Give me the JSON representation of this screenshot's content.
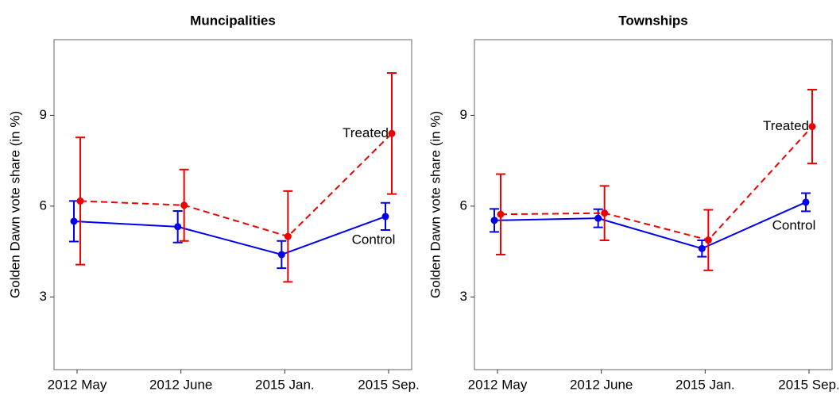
{
  "chart_data": [
    {
      "type": "line",
      "title": "Muncipalities",
      "y_label": "Golden Dawn vote share (in %)",
      "categories": [
        "2012 May",
        "2012 June",
        "2015 Jan.",
        "2015 Sep."
      ],
      "ylim": [
        0.6,
        11.5
      ],
      "yticks": [
        3,
        6,
        9
      ],
      "series": [
        {
          "name": "Control",
          "color": "#0000ee",
          "linestyle": "solid",
          "values": [
            5.5,
            5.32,
            4.4,
            5.66
          ],
          "errors": [
            0.67,
            0.52,
            0.45,
            0.45
          ]
        },
        {
          "name": "Treated",
          "color": "#ee0000",
          "linestyle": "dashed",
          "values": [
            6.17,
            6.03,
            5.0,
            8.4
          ],
          "errors": [
            2.1,
            1.18,
            1.5,
            2.0
          ]
        }
      ]
    },
    {
      "type": "line",
      "title": "Townships",
      "y_label": "Golden Dawn vote share (in %)",
      "categories": [
        "2012 May",
        "2012 June",
        "2015 Jan.",
        "2015 Sep."
      ],
      "ylim": [
        0.6,
        11.5
      ],
      "yticks": [
        3,
        6,
        9
      ],
      "series": [
        {
          "name": "Control",
          "color": "#0000ee",
          "linestyle": "solid",
          "values": [
            5.53,
            5.6,
            4.6,
            6.13
          ],
          "errors": [
            0.38,
            0.3,
            0.27,
            0.3
          ]
        },
        {
          "name": "Treated",
          "color": "#ee0000",
          "linestyle": "dashed",
          "values": [
            5.73,
            5.77,
            4.88,
            8.63
          ],
          "errors": [
            1.33,
            0.9,
            1.0,
            1.22
          ]
        }
      ]
    }
  ]
}
